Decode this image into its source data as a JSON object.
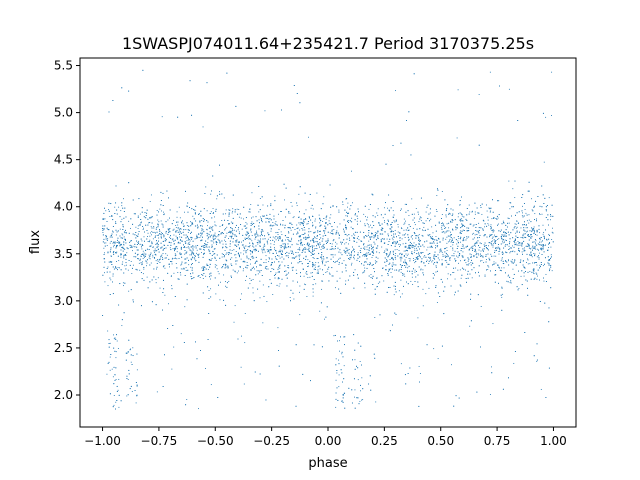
{
  "chart_data": {
    "type": "scatter",
    "title": "1SWASPJ074011.64+235421.7 Period 3170375.25s",
    "xlabel": "phase",
    "ylabel": "flux",
    "xlim": [
      -1.1,
      1.1
    ],
    "ylim": [
      1.66,
      5.58
    ],
    "xticks": [
      -1.0,
      -0.75,
      -0.5,
      -0.25,
      0.0,
      0.25,
      0.5,
      0.75,
      1.0
    ],
    "xtick_labels": [
      "−1.00",
      "−0.75",
      "−0.50",
      "−0.25",
      "0.00",
      "0.25",
      "0.50",
      "0.75",
      "1.00"
    ],
    "yticks": [
      2.0,
      2.5,
      3.0,
      3.5,
      4.0,
      4.5,
      5.0,
      5.5
    ],
    "ytick_labels": [
      "2.0",
      "2.5",
      "3.0",
      "3.5",
      "4.0",
      "4.5",
      "5.0",
      "5.5"
    ],
    "grid": false,
    "marker_color": "#1f77b4",
    "phase_range": [
      -1.0,
      1.0
    ],
    "baseline_flux": 3.6,
    "scatter_sigma": 0.22,
    "dip_phases": [
      -0.95,
      -0.87,
      0.05,
      0.13
    ],
    "dip_min_flux": 1.85,
    "outlier_max_flux": 5.45
  },
  "colors": {
    "marker": "#1f77b4",
    "axes": "#000000",
    "background": "#ffffff"
  }
}
